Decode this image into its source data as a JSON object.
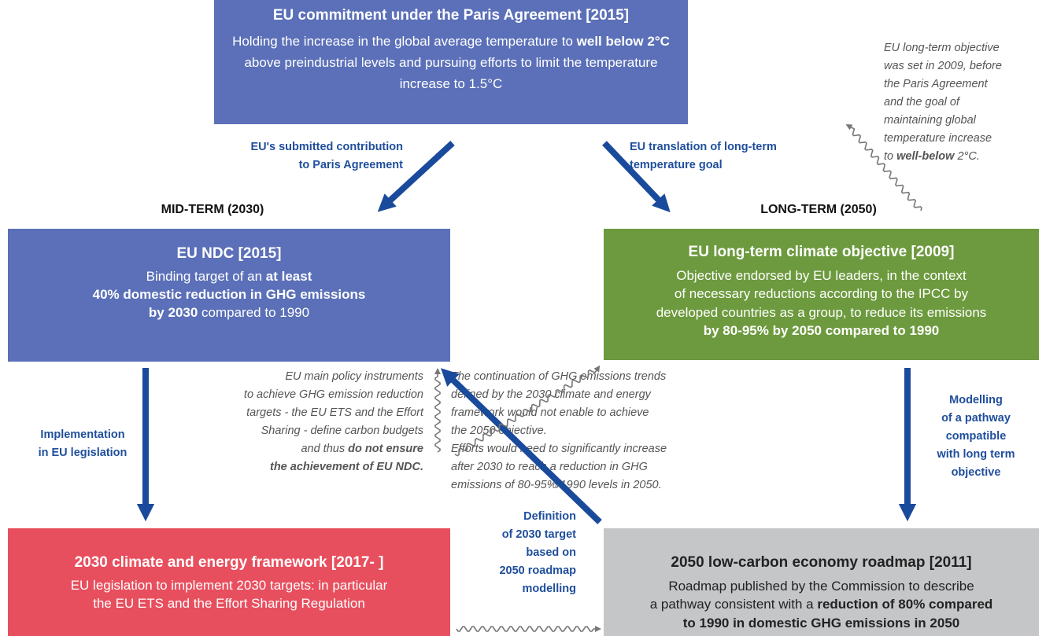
{
  "top_box": {
    "title": "EU commitment under the Paris Agreement [2015]",
    "lines": [
      [
        "Holding the increase in the global average temperature to ",
        "well below 2°C"
      ],
      [
        "above preindustrial levels and pursuing efforts to limit the temperature"
      ],
      [
        "increase to 1.5°C"
      ]
    ]
  },
  "mid_label": "MID-TERM (2030)",
  "long_label": "LONG-TERM (2050)",
  "ndc_box": {
    "title": "EU NDC [2015]",
    "lines": [
      [
        "Binding target of an ",
        "at least"
      ],
      [
        "40% domestic reduction in GHG emissions"
      ],
      [
        "by 2030",
        " compared to 1990"
      ]
    ]
  },
  "objective_box": {
    "title": "EU long-term climate objective [2009]",
    "lines": [
      [
        "Objective endorsed by EU leaders, in the context"
      ],
      [
        "of necessary reductions according to the IPCC by"
      ],
      [
        "developed countries as a group, to reduce its emissions"
      ],
      [
        "by 80-95% by 2050 compared to 1990"
      ]
    ]
  },
  "framework_box": {
    "title": "2030 climate and energy framework [2017- ]",
    "lines": [
      [
        "EU legislation to implement 2030 targets: in particular"
      ],
      [
        "the EU ETS and the Effort Sharing Regulation"
      ]
    ]
  },
  "roadmap_box": {
    "title": "2050 low-carbon economy roadmap [2011]",
    "lines": [
      [
        "Roadmap published by the Commission to describe"
      ],
      [
        "a pathway consistent with a ",
        "reduction of 80% compared"
      ],
      [
        "to 1990 in domestic GHG emissions in 2050"
      ]
    ]
  },
  "arrow_labels": {
    "contribution": [
      "EU's submitted contribution",
      "to Paris Agreement"
    ],
    "translation": [
      "EU translation of long-term",
      "temperature goal"
    ],
    "implementation": [
      "Implementation",
      "in EU legislation"
    ],
    "modelling": [
      "Modelling",
      "of a pathway",
      "compatible",
      "with long term",
      "objective"
    ],
    "definition": [
      "Definition",
      "of 2030 target",
      "based on",
      "2050 roadmap",
      "modelling"
    ]
  },
  "notes": {
    "objective_2009": [
      [
        "EU long-term objective"
      ],
      [
        "was set in 2009, before"
      ],
      [
        "the Paris Agreement"
      ],
      [
        "and the goal of"
      ],
      [
        "maintaining global"
      ],
      [
        "temperature increase"
      ],
      [
        "to ",
        "well-below",
        " 2°C."
      ]
    ],
    "instruments": [
      [
        "EU main policy instruments"
      ],
      [
        "to achieve GHG emission reduction"
      ],
      [
        "targets - the EU ETS and the Effort"
      ],
      [
        "Sharing - define carbon budgets"
      ],
      [
        "and thus ",
        "do not ensure"
      ],
      [
        "the achievement of EU NDC."
      ]
    ],
    "continuation": [
      [
        "The continuation of GHG emissions trends"
      ],
      [
        "defined by the 2030 climate and energy"
      ],
      [
        "framework would not enable to achieve"
      ],
      [
        "the 2050 objective."
      ],
      [
        "Efforts would need to significantly increase"
      ],
      [
        "after 2030 to reach a reduction in GHG"
      ],
      [
        "emissions of 80-95%/1990 levels in 2050."
      ]
    ]
  }
}
